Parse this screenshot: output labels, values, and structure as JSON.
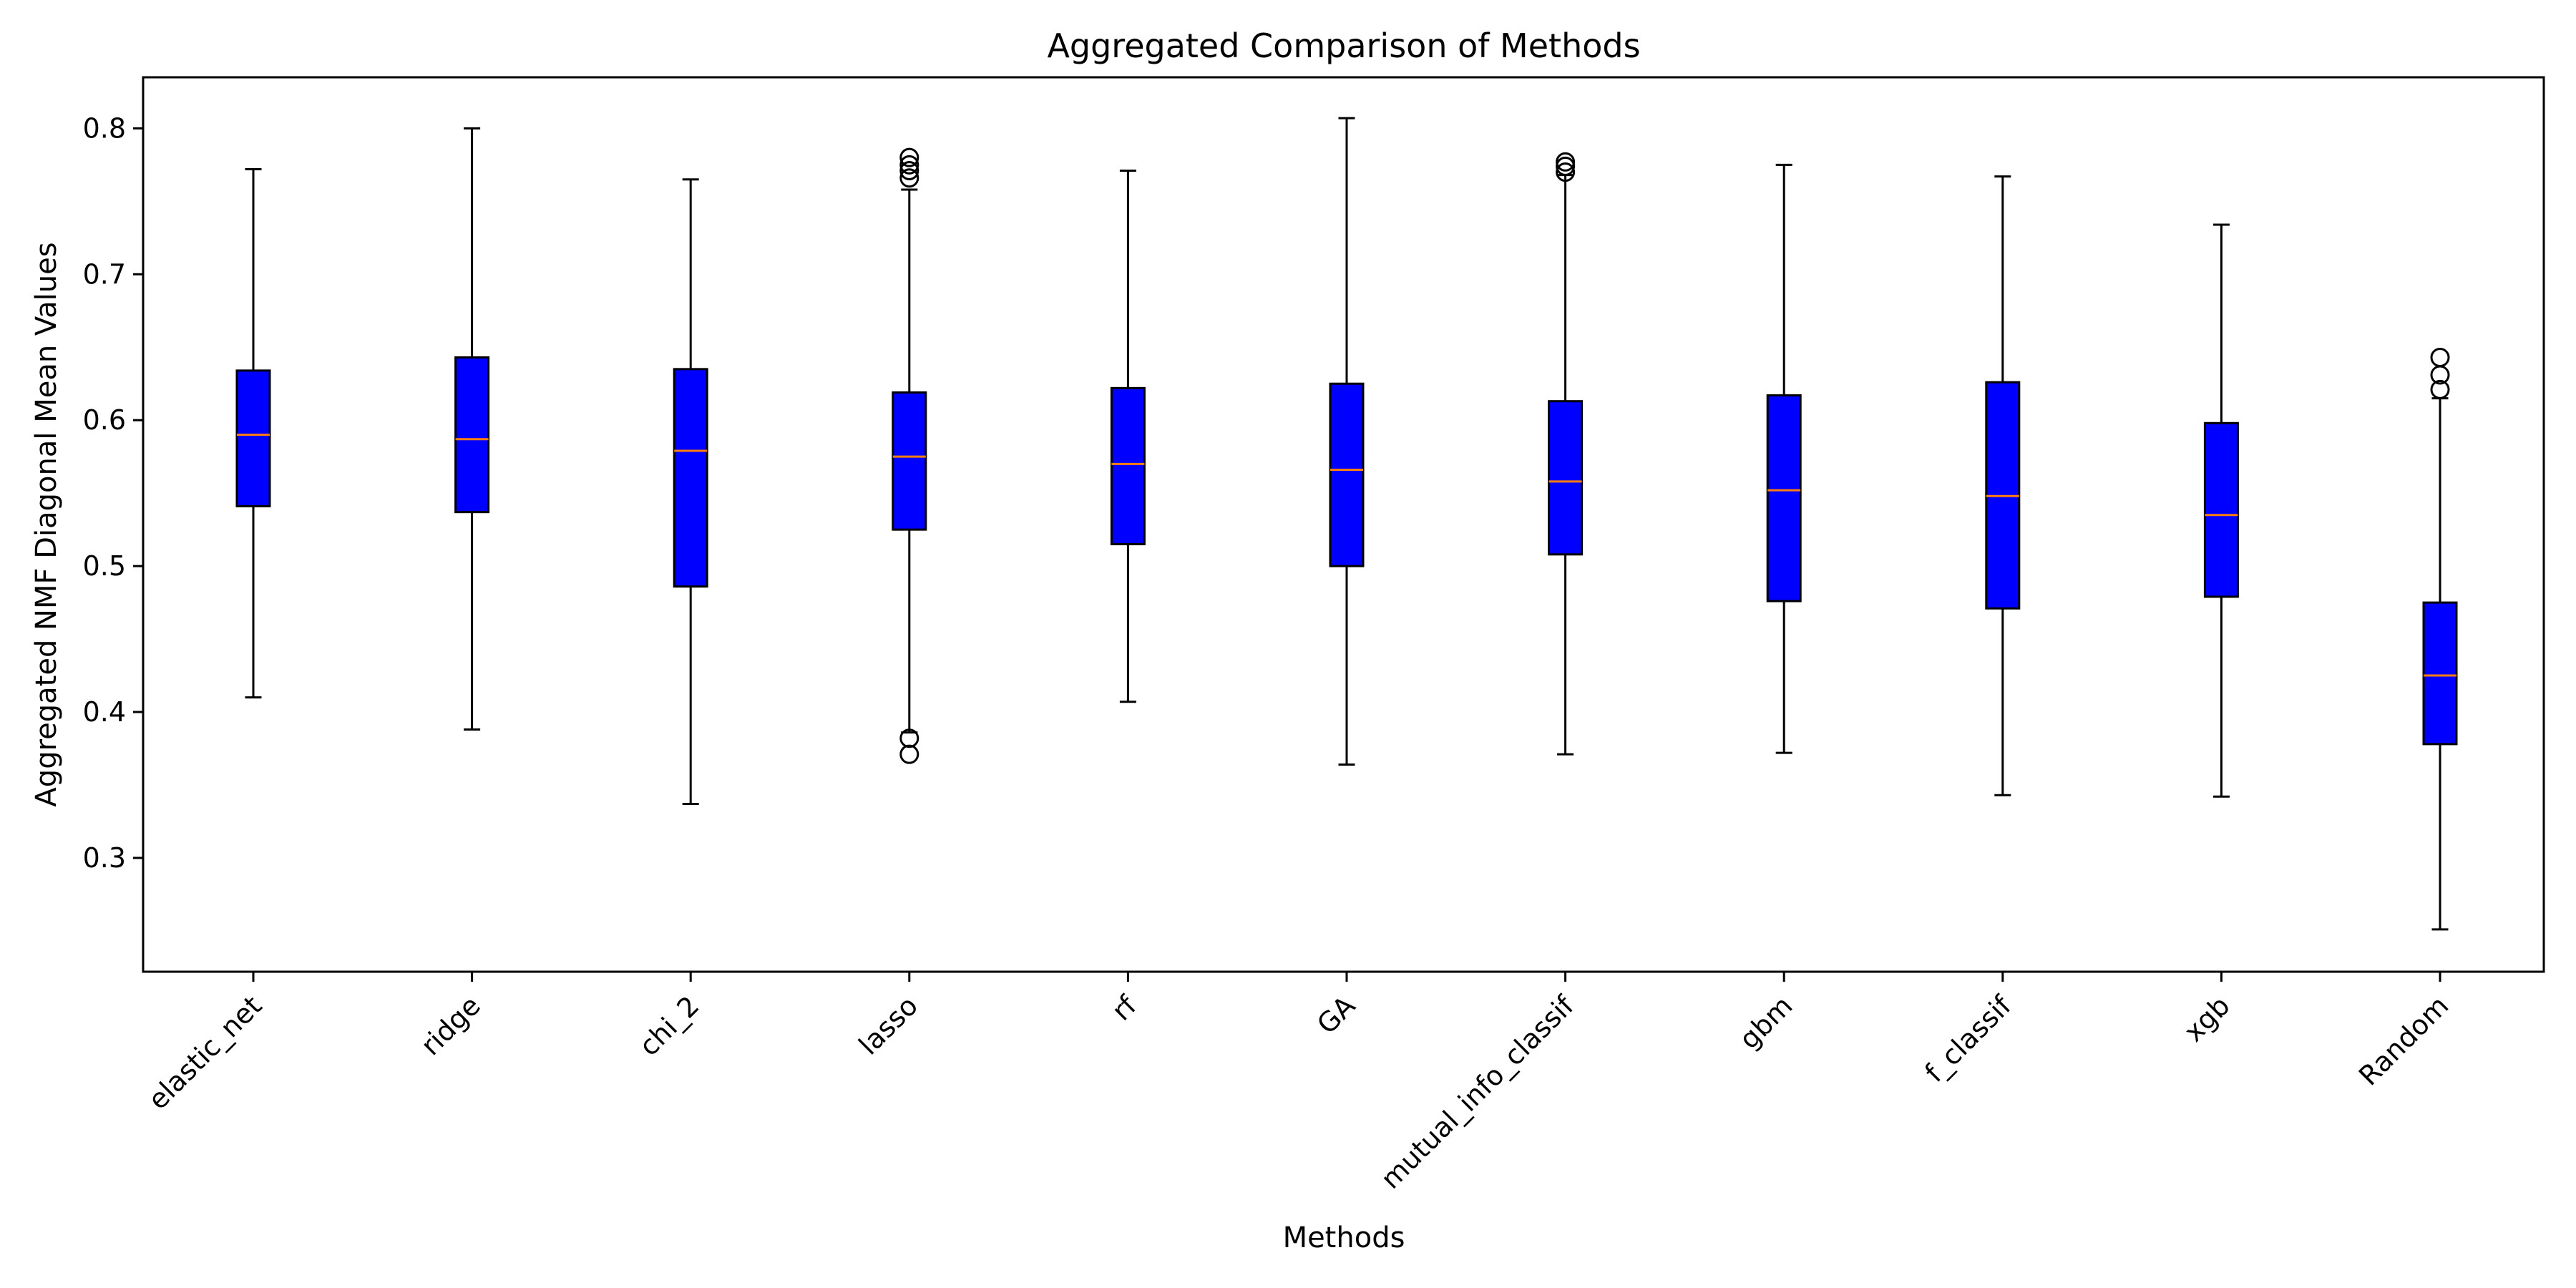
{
  "chart_data": {
    "type": "box",
    "title": "Aggregated Comparison of Methods",
    "xlabel": "Methods",
    "ylabel": "Aggregated NMF Diagonal Mean Values",
    "ylim": [
      0.222,
      0.835
    ],
    "yticks": [
      0.3,
      0.4,
      0.5,
      0.6,
      0.7,
      0.8
    ],
    "ytick_labels": [
      "0.3",
      "0.4",
      "0.5",
      "0.6",
      "0.7",
      "0.8"
    ],
    "x_tick_rotation": 45,
    "grid": false,
    "legend": "none",
    "categories": [
      "elastic_net",
      "ridge",
      "chi_2",
      "lasso",
      "rf",
      "GA",
      "mutual_info_classif",
      "gbm",
      "f_classif",
      "xgb",
      "Random"
    ],
    "boxes": [
      {
        "category": "elastic_net",
        "whisker_low": 0.41,
        "q1": 0.541,
        "median": 0.59,
        "q3": 0.634,
        "whisker_high": 0.772,
        "outliers": []
      },
      {
        "category": "ridge",
        "whisker_low": 0.388,
        "q1": 0.537,
        "median": 0.587,
        "q3": 0.643,
        "whisker_high": 0.8,
        "outliers": []
      },
      {
        "category": "chi_2",
        "whisker_low": 0.337,
        "q1": 0.486,
        "median": 0.579,
        "q3": 0.635,
        "whisker_high": 0.765,
        "outliers": []
      },
      {
        "category": "lasso",
        "whisker_low": 0.386,
        "q1": 0.525,
        "median": 0.575,
        "q3": 0.619,
        "whisker_high": 0.758,
        "outliers": [
          0.371,
          0.382,
          0.766,
          0.771,
          0.775,
          0.78
        ]
      },
      {
        "category": "rf",
        "whisker_low": 0.407,
        "q1": 0.515,
        "median": 0.57,
        "q3": 0.622,
        "whisker_high": 0.771,
        "outliers": []
      },
      {
        "category": "GA",
        "whisker_low": 0.364,
        "q1": 0.5,
        "median": 0.566,
        "q3": 0.625,
        "whisker_high": 0.807,
        "outliers": []
      },
      {
        "category": "mutual_info_classif",
        "whisker_low": 0.371,
        "q1": 0.508,
        "median": 0.558,
        "q3": 0.613,
        "whisker_high": 0.768,
        "outliers": [
          0.77,
          0.774,
          0.777
        ]
      },
      {
        "category": "gbm",
        "whisker_low": 0.372,
        "q1": 0.476,
        "median": 0.552,
        "q3": 0.617,
        "whisker_high": 0.775,
        "outliers": []
      },
      {
        "category": "f_classif",
        "whisker_low": 0.343,
        "q1": 0.471,
        "median": 0.548,
        "q3": 0.626,
        "whisker_high": 0.767,
        "outliers": []
      },
      {
        "category": "xgb",
        "whisker_low": 0.342,
        "q1": 0.479,
        "median": 0.535,
        "q3": 0.598,
        "whisker_high": 0.734,
        "outliers": []
      },
      {
        "category": "Random",
        "whisker_low": 0.251,
        "q1": 0.378,
        "median": 0.425,
        "q3": 0.475,
        "whisker_high": 0.615,
        "outliers": [
          0.621,
          0.631,
          0.643
        ]
      }
    ],
    "colors": {
      "box_fill": "#0000ff",
      "median": "#ff7f0e",
      "line": "#000000",
      "background": "#ffffff"
    }
  }
}
